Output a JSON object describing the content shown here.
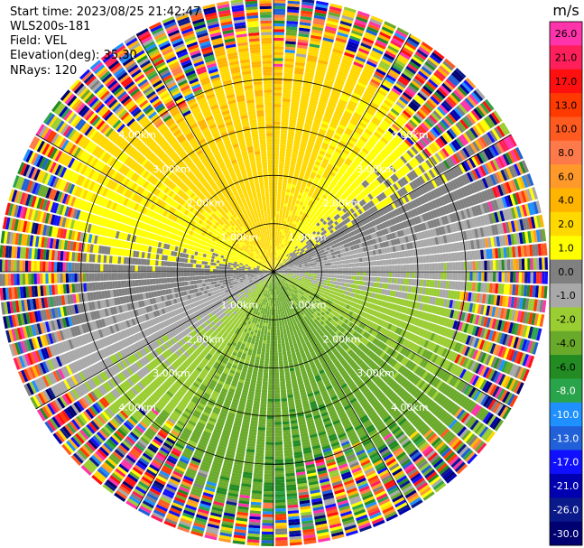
{
  "info": {
    "start_time": "Start time: 2023/08/25 21:42:47",
    "instrument": "WLS200s-181",
    "field": "Field: VEL",
    "elevation": "Elevation(deg): 35.30",
    "nrays": "NRays: 120"
  },
  "chart_data": {
    "type": "heatmap",
    "projection": "polar-ppi",
    "range_ring_labels": [
      "1.00km",
      "2.00km",
      "3.00km",
      "4.00km"
    ],
    "rings_km": [
      1,
      2,
      3,
      4
    ],
    "max_range_km": 5.7,
    "n_rays": 120,
    "gate_km": 0.06,
    "colorbar": {
      "unit": "m/s",
      "tick_labels": [
        "26.0",
        "21.0",
        "17.0",
        "13.0",
        "10.0",
        "8.0",
        "6.0",
        "4.0",
        "2.0",
        "1.0",
        "0.0",
        "-1.0",
        "-2.0",
        "-4.0",
        "-6.0",
        "-8.0",
        "-10.0",
        "-13.0",
        "-17.0",
        "-21.0",
        "-26.0",
        "-30.0"
      ],
      "colors": [
        "#ff33aa",
        "#ff1f5a",
        "#ff1010",
        "#ff3a00",
        "#ff5a20",
        "#ff7a4a",
        "#ff9a2a",
        "#ffb400",
        "#ffd800",
        "#ffff00",
        "#808080",
        "#a8a8a8",
        "#9acd32",
        "#6aaa2a",
        "#228b22",
        "#2aa44a",
        "#1e90ff",
        "#2060d8",
        "#1010ff",
        "#0000b0",
        "#0a1a8a",
        "#000070"
      ]
    }
  }
}
